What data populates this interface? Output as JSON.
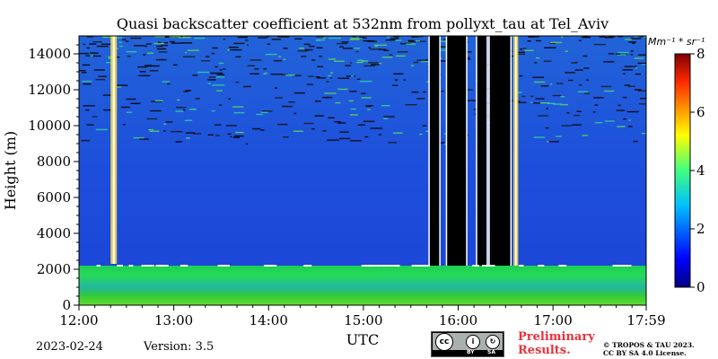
{
  "chart_data": {
    "type": "heatmap",
    "title": "Quasi backscatter coefficient at 532nm from pollyxt_tau at Tel_Aviv",
    "xlabel": "UTC",
    "ylabel": "Height (m)",
    "x_ticks": [
      "12:00",
      "13:00",
      "14:00",
      "15:00",
      "16:00",
      "17:00",
      "17:59"
    ],
    "x_range_hours": [
      12.0,
      17.983
    ],
    "y_ticks": [
      0,
      2000,
      4000,
      6000,
      8000,
      10000,
      12000,
      14000
    ],
    "ylim": [
      0,
      15000
    ],
    "colorbar": {
      "unit_label": "Mm⁻¹ * sr⁻¹",
      "ticks": [
        0,
        2,
        4,
        6,
        8
      ],
      "range": [
        0,
        8
      ],
      "colormap": "jet"
    },
    "features": {
      "boundary_layer_top_m": 2200,
      "near_surface_layer_m": [
        0,
        2200
      ],
      "cloud_columns_utc": [
        {
          "start": "12:20",
          "end": "12:24",
          "height_m": [
            2300,
            15000
          ],
          "type": "thin column"
        },
        {
          "start": "15:42",
          "end": "15:48",
          "height_m": [
            2200,
            15000
          ],
          "type": "opaque"
        },
        {
          "start": "15:53",
          "end": "16:05",
          "height_m": [
            2200,
            15000
          ],
          "type": "opaque"
        },
        {
          "start": "16:12",
          "end": "16:18",
          "height_m": [
            2200,
            15000
          ],
          "type": "opaque"
        },
        {
          "start": "16:20",
          "end": "16:33",
          "height_m": [
            2200,
            15000
          ],
          "type": "opaque"
        },
        {
          "start": "16:35",
          "end": "16:38",
          "height_m": [
            2200,
            15000
          ],
          "type": "thin column"
        }
      ],
      "noise_above_m": 9000
    }
  },
  "footer": {
    "date": "2023-02-24",
    "version": "Version: 3.5",
    "preliminary": "Preliminary",
    "results": "Results.",
    "license_line1": "© TROPOS & TAU 2023.",
    "license_line2": "CC BY SA 4.0 License.",
    "cc_by": "BY",
    "cc_sa": "SA"
  },
  "colors": {
    "background_low": "#1f3fd8",
    "boundary_layer": "#2ad14a",
    "cloud": "#000000",
    "preliminary_text": "#e8323c"
  }
}
